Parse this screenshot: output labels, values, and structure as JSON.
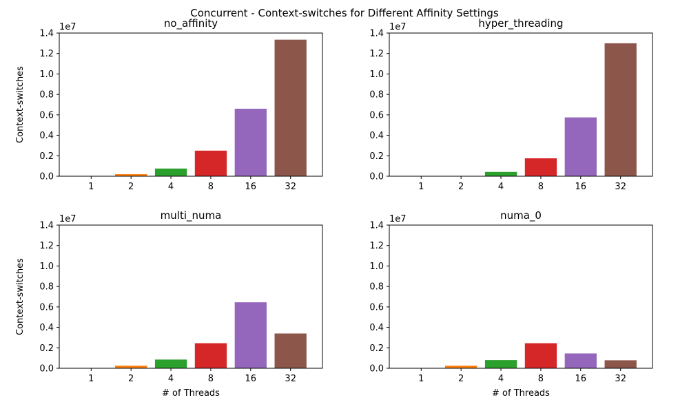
{
  "figure_title": "Concurrent - Context-switches for Different Affinity Settings",
  "chart_data": [
    {
      "type": "bar",
      "title": "no_affinity",
      "categories": [
        "1",
        "2",
        "4",
        "8",
        "16",
        "32"
      ],
      "values": [
        5000,
        200000,
        750000,
        2500000,
        6600000,
        13350000
      ],
      "xlabel": "",
      "ylabel": "Context-switches",
      "ylim": [
        0,
        14000000
      ],
      "yticks": [
        "0.0",
        "0.2",
        "0.4",
        "0.6",
        "0.8",
        "1.0",
        "1.2",
        "1.4"
      ],
      "y_offset_label": "1e7",
      "grid": false
    },
    {
      "type": "bar",
      "title": "hyper_threading",
      "categories": [
        "1",
        "2",
        "4",
        "8",
        "16",
        "32"
      ],
      "values": [
        3000,
        8000,
        420000,
        1750000,
        5750000,
        13000000
      ],
      "xlabel": "",
      "ylabel": "",
      "ylim": [
        0,
        14000000
      ],
      "yticks": [
        "0.0",
        "0.2",
        "0.4",
        "0.6",
        "0.8",
        "1.0",
        "1.2",
        "1.4"
      ],
      "y_offset_label": "1e7",
      "grid": false
    },
    {
      "type": "bar",
      "title": "multi_numa",
      "categories": [
        "1",
        "2",
        "4",
        "8",
        "16",
        "32"
      ],
      "values": [
        5000,
        250000,
        850000,
        2450000,
        6450000,
        3400000
      ],
      "xlabel": "# of Threads",
      "ylabel": "Context-switches",
      "ylim": [
        0,
        14000000
      ],
      "yticks": [
        "0.0",
        "0.2",
        "0.4",
        "0.6",
        "0.8",
        "1.0",
        "1.2",
        "1.4"
      ],
      "y_offset_label": "1e7",
      "grid": false
    },
    {
      "type": "bar",
      "title": "numa_0",
      "categories": [
        "1",
        "2",
        "4",
        "8",
        "16",
        "32"
      ],
      "values": [
        5000,
        250000,
        800000,
        2450000,
        1450000,
        780000
      ],
      "xlabel": "# of Threads",
      "ylabel": "",
      "ylim": [
        0,
        14000000
      ],
      "yticks": [
        "0.0",
        "0.2",
        "0.4",
        "0.6",
        "0.8",
        "1.0",
        "1.2",
        "1.4"
      ],
      "y_offset_label": "1e7",
      "grid": false
    }
  ],
  "colors": [
    "#1f77b4",
    "#ff7f0e",
    "#2ca02c",
    "#d62728",
    "#9467bd",
    "#8c564b"
  ]
}
